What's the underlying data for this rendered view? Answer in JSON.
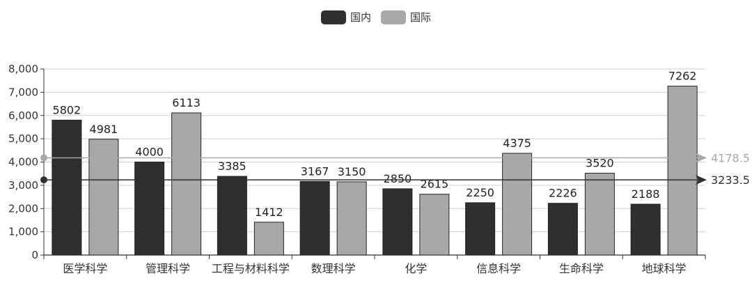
{
  "legend": {
    "items": [
      {
        "label": "国内",
        "color": "#2f2f2f"
      },
      {
        "label": "国际",
        "color": "#a8a8a8"
      }
    ]
  },
  "chart_data": {
    "type": "bar",
    "categories": [
      "医学科学",
      "管理科学",
      "工程与材料科学",
      "数理科学",
      "化学",
      "信息科学",
      "生命科学",
      "地球科学"
    ],
    "series": [
      {
        "name": "国内",
        "color": "#2f2f2f",
        "values": [
          5802,
          4000,
          3385,
          3167,
          2850,
          2250,
          2226,
          2188
        ]
      },
      {
        "name": "国际",
        "color": "#a8a8a8",
        "values": [
          4981,
          6113,
          1412,
          3150,
          2615,
          4375,
          3520,
          7262
        ]
      }
    ],
    "ylim": [
      0,
      8000
    ],
    "yticks": [
      0,
      1000,
      2000,
      3000,
      4000,
      5000,
      6000,
      7000,
      8000
    ],
    "ytick_labels": [
      "0",
      "1,000",
      "2,000",
      "3,000",
      "4,000",
      "5,000",
      "6,000",
      "7,000",
      "8,000"
    ],
    "mark_lines": [
      {
        "series": "国内",
        "value": 3233.5,
        "label": "3233.5",
        "color": "#2f2f2f"
      },
      {
        "series": "国际",
        "value": 4178.5,
        "label": "4178.5",
        "color": "#a8a8a8"
      }
    ],
    "grid": true,
    "legend_position": "top-center"
  }
}
